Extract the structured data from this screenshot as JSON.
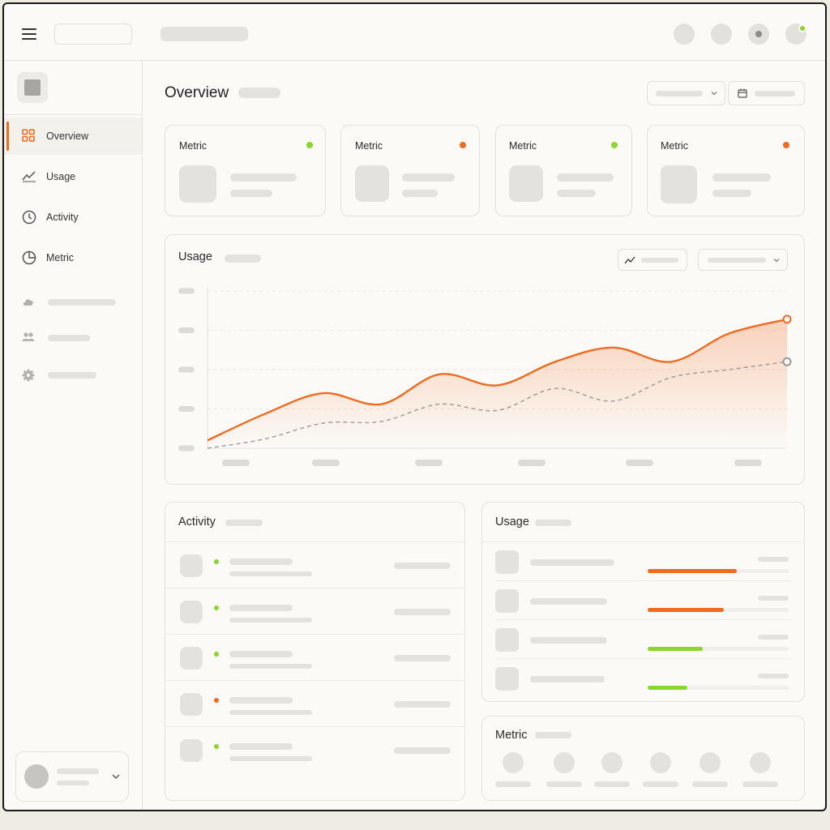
{
  "page": {
    "title": "Overview"
  },
  "sidebar": {
    "items": [
      {
        "label": "Overview",
        "icon": "grid-icon",
        "active": true
      },
      {
        "label": "Usage",
        "icon": "trend-icon",
        "active": false
      },
      {
        "label": "Activity",
        "icon": "clock-icon",
        "active": false
      },
      {
        "label": "Metric",
        "icon": "pie-chart-icon",
        "active": false
      }
    ],
    "secondary_icons": [
      "cloud-icon",
      "users-icon",
      "gear-icon"
    ]
  },
  "metrics": [
    {
      "label": "Metric",
      "status_color": "#8bd62e"
    },
    {
      "label": "Metric",
      "status_color": "#f06a1f"
    },
    {
      "label": "Metric",
      "status_color": "#8bd62e"
    },
    {
      "label": "Metric",
      "status_color": "#f06a1f"
    }
  ],
  "chart_panel": {
    "title": "Usage"
  },
  "chart_data": {
    "type": "line",
    "title": "Usage",
    "grid": true,
    "series": [
      {
        "color": "#f06a1f",
        "style": "solid-area",
        "values": [
          0.05,
          0.22,
          0.35,
          0.28,
          0.47,
          0.4,
          0.55,
          0.64,
          0.55,
          0.73,
          0.82
        ]
      },
      {
        "color": "#9a9996",
        "style": "dashed",
        "values": [
          0.0,
          0.06,
          0.16,
          0.17,
          0.28,
          0.24,
          0.38,
          0.3,
          0.45,
          0.5,
          0.55
        ]
      }
    ]
  },
  "activity": {
    "title": "Activity",
    "rows": [
      {
        "status_color": "#8bd62e"
      },
      {
        "status_color": "#8bd62e"
      },
      {
        "status_color": "#8bd62e"
      },
      {
        "status_color": "#f06a1f"
      },
      {
        "status_color": "#8bd62e"
      }
    ]
  },
  "usage_list": {
    "title": "Usage",
    "rows": [
      {
        "progress": 0.63,
        "color": "#f06a1f"
      },
      {
        "progress": 0.54,
        "color": "#f06a1f"
      },
      {
        "progress": 0.39,
        "color": "#8bd62e"
      },
      {
        "progress": 0.28,
        "color": "#8bd62e"
      }
    ]
  },
  "metric_panel": {
    "title": "Metric"
  },
  "status_colors": {
    "accent": "#f06a1f",
    "ok": "#8bd62e"
  }
}
